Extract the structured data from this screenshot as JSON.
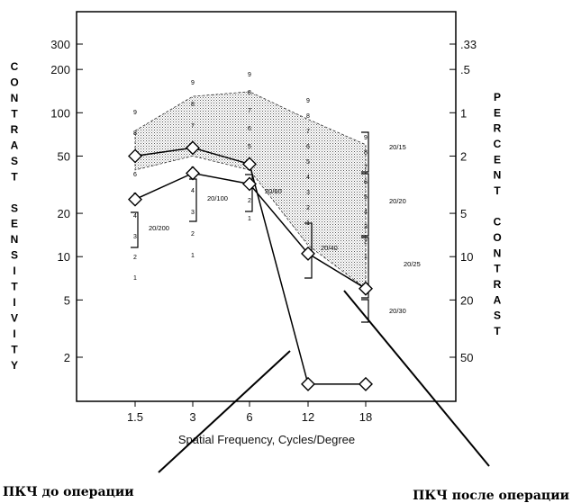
{
  "chart_data": {
    "type": "line",
    "x": [
      "1.5",
      "3",
      "6",
      "12",
      "18"
    ],
    "xlabel": "Spatial Frequency, Cycles/Degree",
    "ylabel_left": "CONTRAST SENSITIVITY",
    "ylabel_right": "PERCENT CONTRAST",
    "y_scale": "log",
    "ylim": [
      1.3,
      500
    ],
    "yticks_left": [
      300,
      200,
      100,
      50,
      20,
      10,
      5,
      2
    ],
    "yticks_right": [
      ".33",
      ".5",
      "1",
      "2",
      "5",
      "10",
      "20",
      "50"
    ],
    "series": [
      {
        "values": [
          50,
          57,
          44,
          1.3,
          1.3
        ]
      },
      {
        "values": [
          25,
          38,
          32,
          10.5,
          6
        ]
      }
    ],
    "normal_band": {
      "upper": [
        75,
        130,
        140,
        90,
        60
      ],
      "lower": [
        40,
        50,
        40,
        12,
        6
      ]
    },
    "grating_numbers": [
      {
        "x": "1.5",
        "labels": [
          "9",
          "8",
          "7",
          "6",
          "5",
          "4",
          "3",
          "2",
          "1"
        ]
      },
      {
        "x": "3",
        "labels": [
          "9",
          "8",
          "7",
          "6",
          "5",
          "4",
          "3",
          "2",
          "1"
        ]
      },
      {
        "x": "6",
        "labels": [
          "9",
          "8",
          "7",
          "6",
          "5",
          "4",
          "3",
          "2",
          "1"
        ]
      },
      {
        "x": "12",
        "labels": [
          "9",
          "8",
          "7",
          "6",
          "5",
          "4",
          "3",
          "2",
          "1"
        ]
      },
      {
        "x": "18",
        "labels": [
          "9",
          "8",
          "7",
          "6",
          "5",
          "4",
          "3",
          "2",
          "1"
        ]
      }
    ],
    "acuity_labels": [
      "20/200",
      "20/100",
      "20/60",
      "20/40",
      "20/15",
      "20/20",
      "20/25",
      "20/30"
    ],
    "annotations": [
      "ПКЧ до операции",
      "ПКЧ после операции"
    ]
  }
}
